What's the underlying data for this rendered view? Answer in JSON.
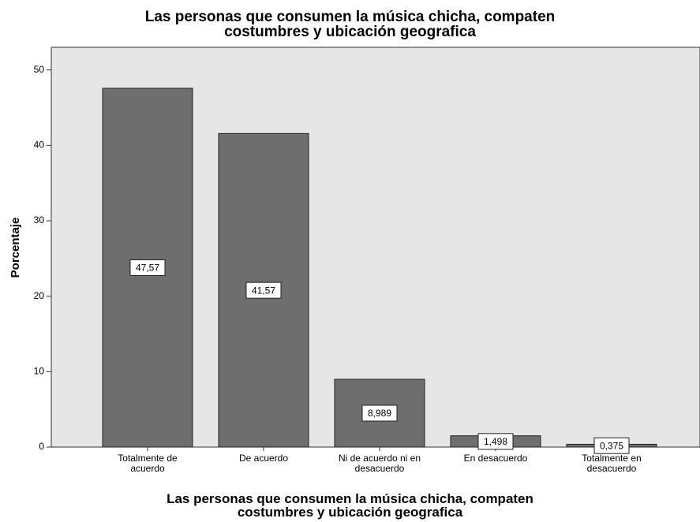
{
  "chart_data": {
    "type": "bar",
    "title": "Las personas que consumen la música chicha, compaten costumbres y ubicación geografica",
    "x_label": "Las personas que consumen la música chicha, compaten costumbres y ubicación geografica",
    "y_label": "Porcentaje",
    "categories": [
      "Totalmente de acuerdo",
      "De acuerdo",
      "Ni de acuerdo ni en desacuerdo",
      "En desacuerdo",
      "Totalmente en desacuerdo"
    ],
    "values": [
      47.57,
      41.57,
      8.989,
      1.498,
      0.375
    ],
    "value_labels": [
      "47,57",
      "41,57",
      "8,989",
      "1,498",
      "0,375"
    ],
    "color": "#6e6e6e",
    "ylim": [
      0,
      53
    ],
    "yticks": [
      0,
      10,
      20,
      30,
      40,
      50
    ],
    "grid": false
  }
}
